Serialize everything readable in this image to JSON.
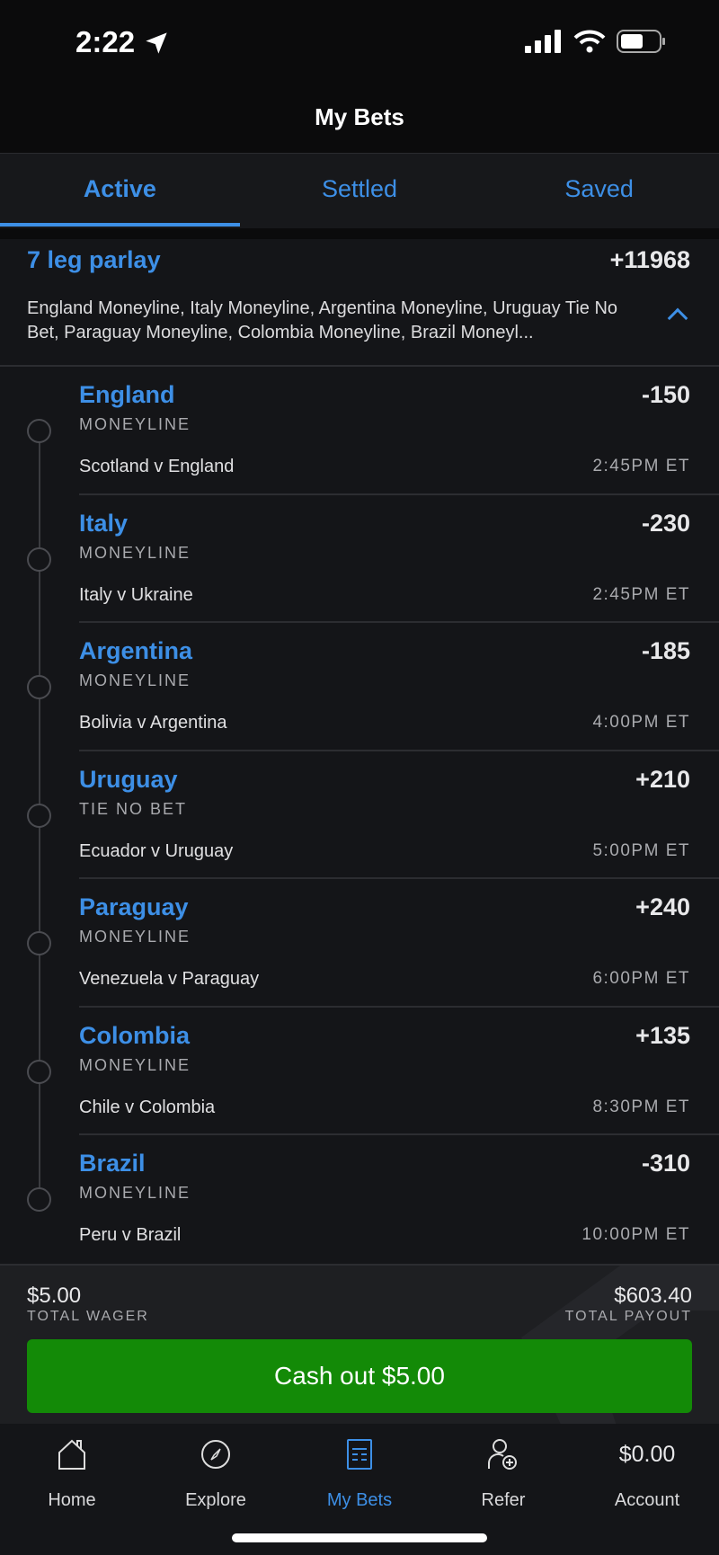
{
  "status_bar": {
    "time": "2:22"
  },
  "header": {
    "title": "My Bets"
  },
  "tabs": [
    {
      "label": "Active",
      "active": true
    },
    {
      "label": "Settled"
    },
    {
      "label": "Saved"
    }
  ],
  "parlay": {
    "title": "7 leg parlay",
    "odds": "+11968",
    "description": "England Moneyline, Italy Moneyline, Argentina Moneyline, Uruguay Tie No Bet, Paraguay Moneyline, Colombia Moneyline, Brazil Moneyl..."
  },
  "legs": [
    {
      "team": "England",
      "market": "MONEYLINE",
      "odds": "-150",
      "match": "Scotland v England",
      "time": "2:45PM ET"
    },
    {
      "team": "Italy",
      "market": "MONEYLINE",
      "odds": "-230",
      "match": "Italy v Ukraine",
      "time": "2:45PM ET"
    },
    {
      "team": "Argentina",
      "market": "MONEYLINE",
      "odds": "-185",
      "match": "Bolivia v Argentina",
      "time": "4:00PM ET"
    },
    {
      "team": "Uruguay",
      "market": "TIE NO BET",
      "odds": "+210",
      "match": "Ecuador v Uruguay",
      "time": "5:00PM ET"
    },
    {
      "team": "Paraguay",
      "market": "MONEYLINE",
      "odds": "+240",
      "match": "Venezuela v Paraguay",
      "time": "6:00PM ET"
    },
    {
      "team": "Colombia",
      "market": "MONEYLINE",
      "odds": "+135",
      "match": "Chile v Colombia",
      "time": "8:30PM ET"
    },
    {
      "team": "Brazil",
      "market": "MONEYLINE",
      "odds": "-310",
      "match": "Peru v Brazil",
      "time": "10:00PM ET"
    }
  ],
  "footer": {
    "wager_value": "$5.00",
    "wager_label": "TOTAL WAGER",
    "payout_value": "$603.40",
    "payout_label": "TOTAL PAYOUT",
    "cashout_label": "Cash out $5.00"
  },
  "nav": {
    "home": "Home",
    "explore": "Explore",
    "mybets": "My Bets",
    "refer": "Refer",
    "balance": "$0.00",
    "account": "Account"
  },
  "colors": {
    "accent": "#3d8fe6",
    "cashout": "#138a07",
    "background": "#141518"
  }
}
